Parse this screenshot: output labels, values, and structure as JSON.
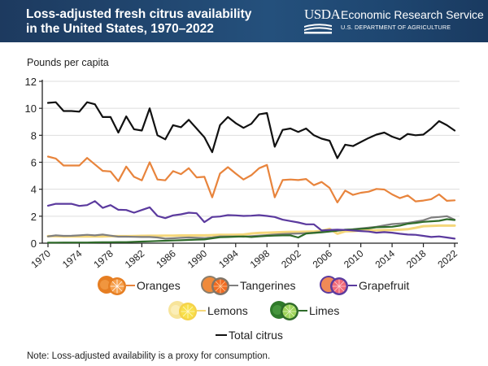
{
  "header": {
    "title": "Loss-adjusted fresh citrus availability in the United States, 1970–2022",
    "logo_text": "USDA",
    "agency": "Economic Research Service",
    "department": "U.S. DEPARTMENT OF AGRICULTURE"
  },
  "note": "Note: Loss-adjusted availability is a proxy for consumption.",
  "colors": {
    "header_bg": "#1f4470",
    "oranges": "#e8843c",
    "tangerines": "#7f7f7f",
    "grapefruit": "#5b3a9e",
    "lemons": "#f5d77a",
    "limes": "#2f6b2a",
    "total": "#111111",
    "grid": "#dddddd"
  },
  "chart_data": {
    "type": "line",
    "title": "Loss-adjusted fresh citrus availability in the United States, 1970–2022",
    "xlabel": "",
    "ylabel": "Pounds per capita",
    "xlim": [
      1970,
      2022
    ],
    "ylim": [
      0,
      12
    ],
    "yticks": [
      0,
      2,
      4,
      6,
      8,
      10,
      12
    ],
    "xticks": [
      1970,
      1974,
      1978,
      1982,
      1986,
      1990,
      1994,
      1998,
      2002,
      2006,
      2010,
      2014,
      2018,
      2022
    ],
    "grid": "horizontal",
    "legend_position": "bottom",
    "x": [
      1970,
      1971,
      1972,
      1973,
      1974,
      1975,
      1976,
      1977,
      1978,
      1979,
      1980,
      1981,
      1982,
      1983,
      1984,
      1985,
      1986,
      1987,
      1988,
      1989,
      1990,
      1991,
      1992,
      1993,
      1994,
      1995,
      1996,
      1997,
      1998,
      1999,
      2000,
      2001,
      2002,
      2003,
      2004,
      2005,
      2006,
      2007,
      2008,
      2009,
      2010,
      2011,
      2012,
      2013,
      2014,
      2015,
      2016,
      2017,
      2018,
      2019,
      2020,
      2021,
      2022
    ],
    "series": [
      {
        "key": "oranges",
        "name": "Oranges",
        "values": [
          6.42,
          6.28,
          5.76,
          5.76,
          5.76,
          6.32,
          5.84,
          5.36,
          5.32,
          4.6,
          5.68,
          4.92,
          4.66,
          6.0,
          4.72,
          4.66,
          5.34,
          5.12,
          5.56,
          4.88,
          4.92,
          3.4,
          5.16,
          5.64,
          5.16,
          4.72,
          5.04,
          5.56,
          5.8,
          3.4,
          4.68,
          4.72,
          4.68,
          4.76,
          4.3,
          4.54,
          4.1,
          3.02,
          3.9,
          3.58,
          3.74,
          3.82,
          4.02,
          3.98,
          3.62,
          3.34,
          3.54,
          3.1,
          3.16,
          3.26,
          3.62,
          3.14,
          3.18
        ]
      },
      {
        "key": "tangerines",
        "name": "Tangerines",
        "values": [
          0.5,
          0.58,
          0.54,
          0.55,
          0.58,
          0.62,
          0.58,
          0.64,
          0.56,
          0.48,
          0.48,
          0.47,
          0.46,
          0.46,
          0.42,
          0.34,
          0.36,
          0.4,
          0.42,
          0.4,
          0.38,
          0.42,
          0.5,
          0.5,
          0.5,
          0.48,
          0.52,
          0.56,
          0.6,
          0.64,
          0.68,
          0.7,
          0.72,
          0.74,
          0.78,
          0.84,
          0.88,
          0.94,
          0.98,
          1.04,
          1.1,
          1.16,
          1.22,
          1.32,
          1.42,
          1.46,
          1.5,
          1.6,
          1.7,
          1.9,
          1.94,
          2.0,
          1.74
        ]
      },
      {
        "key": "grapefruit",
        "name": "Grapefruit",
        "values": [
          2.78,
          2.92,
          2.92,
          2.92,
          2.76,
          2.82,
          3.12,
          2.62,
          2.82,
          2.48,
          2.46,
          2.26,
          2.46,
          2.66,
          2.02,
          1.86,
          2.06,
          2.14,
          2.26,
          2.22,
          1.56,
          1.94,
          1.98,
          2.08,
          2.06,
          2.02,
          2.04,
          2.08,
          2.02,
          1.94,
          1.74,
          1.64,
          1.54,
          1.4,
          1.4,
          0.94,
          0.98,
          1.0,
          0.98,
          0.94,
          0.9,
          0.86,
          0.78,
          0.82,
          0.78,
          0.7,
          0.64,
          0.62,
          0.54,
          0.46,
          0.5,
          0.42,
          0.34
        ]
      },
      {
        "key": "lemons",
        "name": "Lemons",
        "values": [
          0.52,
          0.52,
          0.5,
          0.5,
          0.5,
          0.5,
          0.5,
          0.5,
          0.52,
          0.52,
          0.52,
          0.53,
          0.54,
          0.55,
          0.55,
          0.56,
          0.56,
          0.57,
          0.57,
          0.58,
          0.58,
          0.6,
          0.62,
          0.62,
          0.63,
          0.64,
          0.72,
          0.76,
          0.78,
          0.8,
          0.82,
          0.84,
          0.84,
          0.85,
          0.86,
          0.92,
          1.06,
          0.7,
          0.88,
          0.9,
          0.94,
          0.95,
          0.96,
          0.97,
          0.98,
          1.0,
          1.04,
          1.14,
          1.26,
          1.28,
          1.3,
          1.3,
          1.3
        ]
      },
      {
        "key": "limes",
        "name": "Limes",
        "values": [
          0.04,
          0.04,
          0.05,
          0.05,
          0.05,
          0.05,
          0.06,
          0.07,
          0.07,
          0.08,
          0.08,
          0.1,
          0.12,
          0.14,
          0.16,
          0.18,
          0.2,
          0.22,
          0.24,
          0.26,
          0.28,
          0.36,
          0.44,
          0.46,
          0.48,
          0.5,
          0.46,
          0.5,
          0.54,
          0.56,
          0.58,
          0.58,
          0.42,
          0.72,
          0.76,
          0.8,
          0.86,
          0.92,
          1.0,
          1.02,
          1.06,
          1.1,
          1.18,
          1.2,
          1.22,
          1.3,
          1.44,
          1.5,
          1.58,
          1.62,
          1.66,
          1.78,
          1.72
        ]
      },
      {
        "key": "total",
        "name": "Total citrus",
        "values": [
          10.4,
          10.45,
          9.8,
          9.8,
          9.75,
          10.45,
          10.3,
          9.35,
          9.35,
          8.2,
          9.4,
          8.45,
          8.35,
          10.0,
          8.0,
          7.7,
          8.75,
          8.6,
          9.15,
          8.5,
          7.85,
          6.75,
          8.75,
          9.35,
          8.9,
          8.55,
          8.85,
          9.55,
          9.65,
          7.15,
          8.4,
          8.5,
          8.25,
          8.5,
          8.0,
          7.75,
          7.6,
          6.3,
          7.3,
          7.2,
          7.5,
          7.8,
          8.05,
          8.2,
          7.9,
          7.7,
          8.1,
          8.0,
          8.05,
          8.5,
          9.05,
          8.75,
          8.35
        ]
      }
    ],
    "legend": [
      {
        "key": "oranges",
        "label": "Oranges",
        "icon": "orange-fruit-icon"
      },
      {
        "key": "tangerines",
        "label": "Tangerines",
        "icon": "tangerine-fruit-icon"
      },
      {
        "key": "grapefruit",
        "label": "Grapefruit",
        "icon": "grapefruit-fruit-icon"
      },
      {
        "key": "lemons",
        "label": "Lemons",
        "icon": "lemon-fruit-icon"
      },
      {
        "key": "limes",
        "label": "Limes",
        "icon": "lime-fruit-icon"
      },
      {
        "key": "total",
        "label": "Total citrus",
        "icon": "line-swatch"
      }
    ]
  }
}
